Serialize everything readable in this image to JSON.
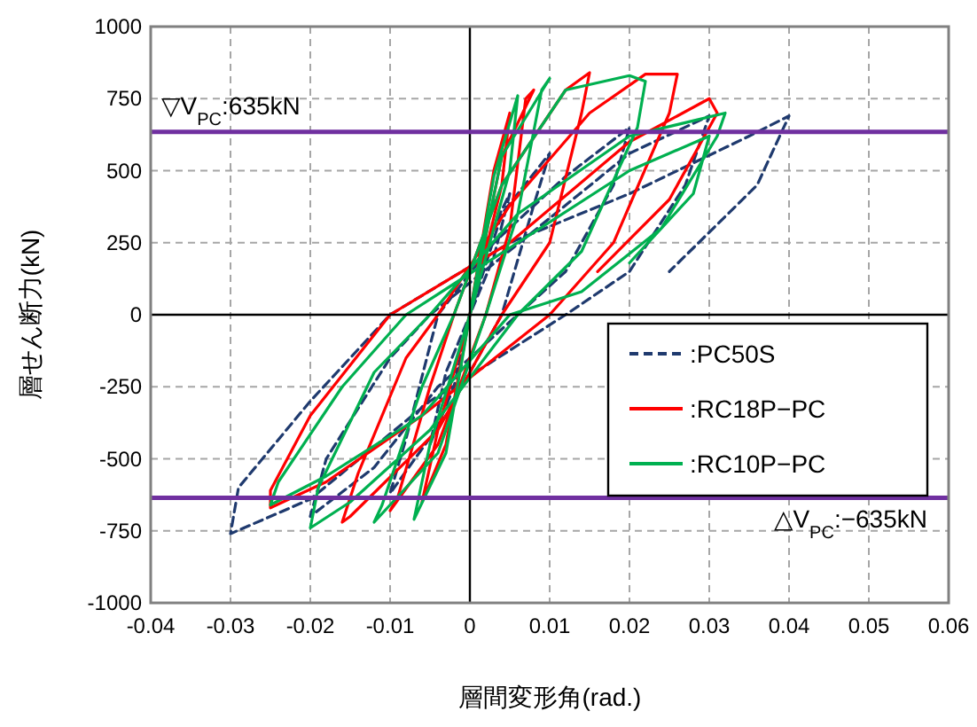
{
  "chart_data": {
    "type": "line",
    "xlabel": "層間変形角(rad.)",
    "ylabel": "層せん断力(kN)",
    "xlim": [
      -0.04,
      0.06
    ],
    "xticks": [
      -0.04,
      -0.03,
      -0.02,
      -0.01,
      0,
      0.01,
      0.02,
      0.03,
      0.04,
      0.05,
      0.06
    ],
    "ylim": [
      -1000,
      1000
    ],
    "yticks": [
      -1000,
      -750,
      -500,
      -250,
      0,
      250,
      500,
      750,
      1000
    ],
    "grid": true,
    "legend": "right",
    "ref_lines": [
      {
        "axis": "y",
        "value": 635,
        "label": "▽V$_{PC}$:635kN",
        "color": "#7030a0"
      },
      {
        "axis": "y",
        "value": -635,
        "label": "△V$_{PC}$:−635kN",
        "color": "#7030a0"
      }
    ],
    "series": [
      {
        "name": ":PC50S",
        "color": "#1f3a6e",
        "line_style": "dashed",
        "x": [
          0,
          0.002,
          0.005,
          0.003,
          0,
          -0.002,
          -0.005,
          -0.003,
          0,
          0.004,
          0.01,
          0.008,
          0.004,
          -0.003,
          -0.01,
          -0.008,
          -0.004,
          0.003,
          0.012,
          0.02,
          0.018,
          0.012,
          0.006,
          -0.004,
          -0.012,
          -0.02,
          -0.018,
          -0.01,
          -0.005,
          0.004,
          0.02,
          0.03,
          0.027,
          0.02,
          0.012,
          -0.005,
          -0.02,
          -0.03,
          -0.029,
          -0.02,
          -0.01,
          0.005,
          0.02,
          0.035,
          0.04,
          0.036,
          0.025
        ],
        "values": [
          0,
          250,
          420,
          200,
          0,
          -250,
          -450,
          -200,
          0,
          350,
          560,
          380,
          0,
          -350,
          -620,
          -430,
          0,
          250,
          480,
          650,
          450,
          150,
          0,
          -250,
          -530,
          -700,
          -500,
          -150,
          0,
          200,
          560,
          690,
          450,
          150,
          0,
          -300,
          -640,
          -760,
          -600,
          -300,
          0,
          250,
          420,
          620,
          690,
          450,
          150
        ]
      },
      {
        "name": ":RC18P−PC",
        "color": "#ff0000",
        "x": [
          0,
          0.003,
          0.005,
          0.004,
          0,
          -0.003,
          -0.006,
          -0.004,
          0,
          0.004,
          0.008,
          0.007,
          0.005,
          0.002,
          -0.004,
          -0.01,
          -0.009,
          -0.005,
          -0.002,
          0.004,
          0.012,
          0.015,
          0.014,
          0.01,
          0.004,
          -0.004,
          -0.015,
          -0.016,
          -0.014,
          -0.008,
          -0.004,
          0.005,
          0.015,
          0.022,
          0.026,
          0.025,
          0.018,
          0.01,
          -0.006,
          -0.018,
          -0.025,
          -0.025,
          -0.02,
          -0.01,
          0.005,
          0.02,
          0.03,
          0.031,
          0.025,
          0.016
        ],
        "values": [
          0,
          500,
          700,
          450,
          0,
          -450,
          -650,
          -400,
          0,
          550,
          780,
          750,
          300,
          0,
          -450,
          -680,
          -630,
          -250,
          0,
          450,
          780,
          840,
          700,
          250,
          0,
          -400,
          -700,
          -720,
          -550,
          -150,
          0,
          380,
          700,
          835,
          835,
          700,
          250,
          0,
          -350,
          -580,
          -670,
          -610,
          -350,
          0,
          250,
          600,
          750,
          700,
          400,
          150
        ]
      },
      {
        "name": ":RC10P−PC",
        "color": "#00b050",
        "x": [
          0,
          0.003,
          0.006,
          0.005,
          0,
          -0.003,
          -0.007,
          -0.005,
          0,
          0.004,
          0.01,
          0.009,
          0.006,
          0.002,
          -0.004,
          -0.012,
          -0.011,
          -0.006,
          -0.002,
          0.004,
          0.012,
          0.02,
          0.022,
          0.021,
          0.014,
          0.006,
          -0.005,
          -0.015,
          -0.02,
          -0.019,
          -0.012,
          -0.005,
          0.006,
          0.02,
          0.032,
          0.031,
          0.024,
          0.014,
          0.005,
          -0.006,
          -0.018,
          -0.025,
          -0.024,
          -0.016,
          -0.008,
          0.006,
          0.02,
          0.03,
          0.028,
          0.02
        ],
        "values": [
          0,
          480,
          760,
          500,
          0,
          -480,
          -710,
          -450,
          0,
          550,
          820,
          780,
          350,
          0,
          -480,
          -720,
          -660,
          -250,
          0,
          450,
          780,
          830,
          810,
          650,
          220,
          0,
          -400,
          -650,
          -740,
          -600,
          -200,
          0,
          350,
          620,
          700,
          620,
          300,
          80,
          0,
          -350,
          -560,
          -660,
          -580,
          -250,
          0,
          250,
          500,
          620,
          420,
          180
        ]
      }
    ]
  }
}
